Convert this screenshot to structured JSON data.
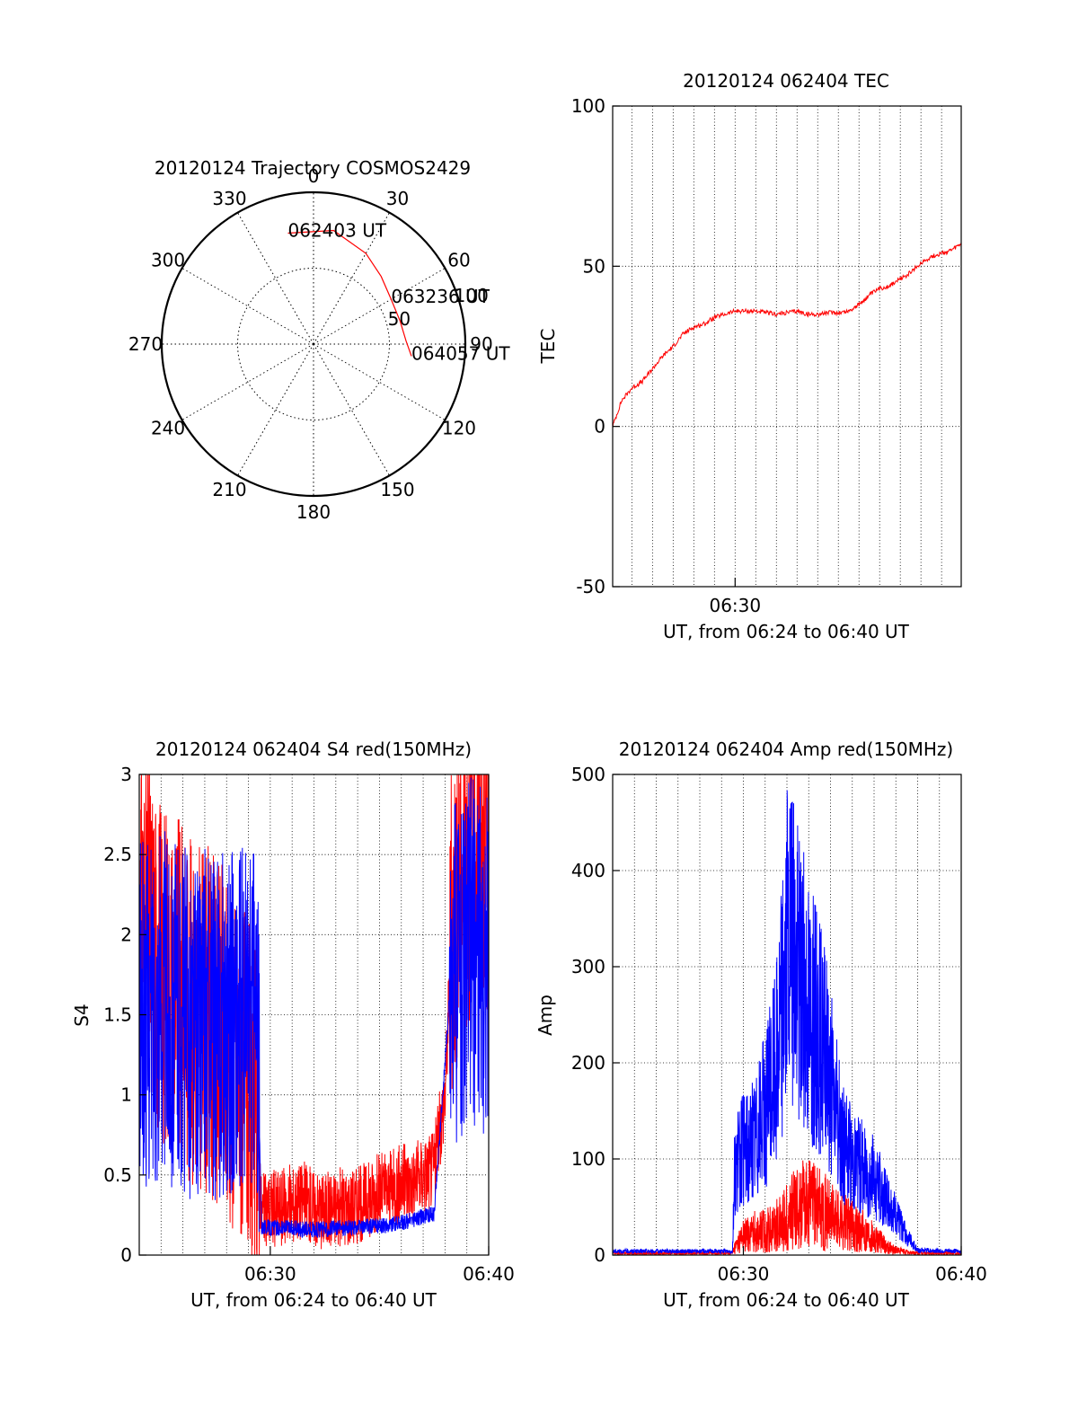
{
  "colors": {
    "red": "#ff0000",
    "blue": "#0000ff",
    "axis": "#000000",
    "grid": "#000000"
  },
  "chart_data": [
    {
      "id": "polar",
      "type": "polar",
      "title": "20120124 Trajectory COSMOS2429",
      "azimuth_labels": [
        "0",
        "30",
        "60",
        "90",
        "120",
        "150",
        "180",
        "210",
        "240",
        "270",
        "300",
        "330"
      ],
      "radial_labels": [
        "50",
        "100"
      ],
      "rlim": [
        0,
        100
      ],
      "trajectory": {
        "color": "#ff0000",
        "points": [
          [
            347,
            75
          ],
          [
            10,
            76
          ],
          [
            30,
            69
          ],
          [
            45,
            63
          ],
          [
            60,
            59
          ],
          [
            75,
            59
          ],
          [
            88,
            61
          ],
          [
            97,
            65
          ]
        ]
      },
      "annotations": [
        {
          "text": "062403 UT",
          "az": 347,
          "r": 75
        },
        {
          "text": "063236 UT",
          "az": 60,
          "r": 59
        },
        {
          "text": "064057 UT",
          "az": 97,
          "r": 65
        }
      ]
    },
    {
      "id": "tec",
      "type": "line",
      "title": "20120124 062404 TEC",
      "ylabel": "TEC",
      "xlabel": "UT, from 06:24 to 06:40 UT",
      "xlim": [
        24.07,
        40.95
      ],
      "ylim": [
        -50,
        100
      ],
      "yticks": [
        "-50",
        "0",
        "50",
        "100"
      ],
      "xticks": [
        {
          "minute": 30,
          "label": "06:30"
        }
      ],
      "grid": true,
      "series": [
        {
          "color": "#ff0000",
          "x": [
            24.07,
            24.5,
            25.0,
            25.5,
            26.0,
            26.5,
            27.0,
            27.5,
            28.0,
            28.5,
            29.0,
            29.5,
            30.0,
            30.5,
            31.0,
            31.5,
            32.0,
            32.5,
            33.0,
            33.5,
            34.0,
            34.5,
            35.0,
            35.5,
            36.0,
            36.5,
            37.0,
            37.5,
            38.0,
            38.5,
            39.0,
            39.5,
            40.0,
            40.5,
            40.95
          ],
          "y": [
            0,
            8,
            12,
            14,
            18,
            22,
            25,
            29,
            31,
            32,
            34,
            35,
            36,
            36,
            36,
            35.5,
            35,
            35.5,
            36,
            35,
            35,
            35.5,
            35.5,
            36,
            38,
            41,
            43,
            44,
            46,
            48,
            51,
            53,
            54,
            55,
            57
          ]
        }
      ]
    },
    {
      "id": "s4",
      "type": "line",
      "title": "20120124 062404 S4 red(150MHz)",
      "ylabel": "S4",
      "xlabel": "UT, from 06:24 to 06:40 UT",
      "xlim": [
        24.0,
        40.0
      ],
      "ylim": [
        0,
        3
      ],
      "yticks": [
        "0",
        "0.5",
        "1",
        "1.5",
        "2",
        "2.5",
        "3"
      ],
      "xticks": [
        {
          "minute": 30,
          "label": "06:30"
        },
        {
          "minute": 40,
          "label": "06:40"
        }
      ],
      "grid": true,
      "series": [
        {
          "color": "#ff0000",
          "x": [
            24.0,
            24.5,
            25.0,
            25.5,
            26.0,
            26.5,
            27.0,
            27.5,
            28.0,
            28.5,
            29.0,
            29.4,
            29.6,
            30.0,
            30.5,
            31.0,
            31.5,
            32.0,
            32.5,
            33.0,
            33.5,
            34.0,
            34.5,
            35.0,
            35.5,
            36.0,
            36.5,
            37.0,
            37.5,
            38.0,
            38.3,
            38.6,
            39.0,
            39.5,
            40.0
          ],
          "y": [
            2.2,
            2.0,
            1.8,
            1.7,
            1.6,
            1.5,
            1.5,
            1.4,
            1.3,
            1.2,
            1.0,
            0.8,
            0.25,
            0.3,
            0.3,
            0.32,
            0.35,
            0.3,
            0.28,
            0.3,
            0.3,
            0.32,
            0.35,
            0.4,
            0.4,
            0.45,
            0.45,
            0.5,
            0.55,
            1.0,
            2.0,
            2.4,
            2.5,
            2.6,
            2.6
          ]
        },
        {
          "color": "#0000ff",
          "x": [
            24.0,
            24.5,
            25.0,
            25.5,
            26.0,
            26.5,
            27.0,
            27.5,
            28.0,
            28.5,
            29.0,
            29.4,
            29.6,
            30.0,
            30.5,
            31.0,
            31.5,
            32.0,
            32.5,
            33.0,
            33.5,
            34.0,
            34.5,
            35.0,
            35.5,
            36.0,
            36.5,
            37.0,
            37.5,
            38.0,
            38.3,
            38.6,
            39.0,
            39.5,
            40.0
          ],
          "y": [
            1.5,
            1.5,
            1.6,
            1.5,
            1.5,
            1.4,
            1.5,
            1.4,
            1.5,
            1.4,
            1.5,
            1.4,
            0.18,
            0.17,
            0.17,
            0.17,
            0.16,
            0.16,
            0.16,
            0.17,
            0.17,
            0.17,
            0.18,
            0.18,
            0.19,
            0.2,
            0.22,
            0.24,
            0.26,
            1.2,
            1.8,
            1.8,
            1.9,
            1.9,
            1.8
          ]
        }
      ]
    },
    {
      "id": "amp",
      "type": "line",
      "title": "20120124 062404 Amp red(150MHz)",
      "ylabel": "Amp",
      "xlabel": "UT, from 06:24 to 06:40 UT",
      "xlim": [
        24.0,
        40.0
      ],
      "ylim": [
        0,
        500
      ],
      "yticks": [
        "0",
        "100",
        "200",
        "300",
        "400",
        "500"
      ],
      "xticks": [
        {
          "minute": 30,
          "label": "06:30"
        },
        {
          "minute": 40,
          "label": "06:40"
        }
      ],
      "grid": true,
      "series": [
        {
          "color": "#ff0000",
          "x": [
            24.0,
            29.5,
            29.6,
            30.0,
            30.5,
            31.0,
            31.5,
            32.0,
            32.5,
            33.0,
            33.5,
            34.0,
            34.5,
            35.0,
            35.5,
            36.0,
            36.5,
            37.0,
            37.5,
            38.0,
            40.0
          ],
          "y": [
            2,
            2,
            8,
            20,
            25,
            25,
            30,
            40,
            50,
            55,
            50,
            40,
            35,
            30,
            25,
            20,
            10,
            5,
            3,
            2,
            2
          ]
        },
        {
          "color": "#0000ff",
          "x": [
            24.0,
            29.5,
            29.6,
            30.0,
            30.5,
            31.0,
            31.5,
            32.0,
            32.5,
            33.0,
            33.5,
            34.0,
            34.5,
            35.0,
            35.5,
            36.0,
            36.5,
            37.0,
            37.5,
            38.0,
            40.0
          ],
          "y": [
            4,
            4,
            90,
            110,
            120,
            150,
            200,
            320,
            300,
            260,
            230,
            180,
            120,
            100,
            90,
            80,
            60,
            40,
            20,
            5,
            4
          ]
        }
      ]
    }
  ]
}
